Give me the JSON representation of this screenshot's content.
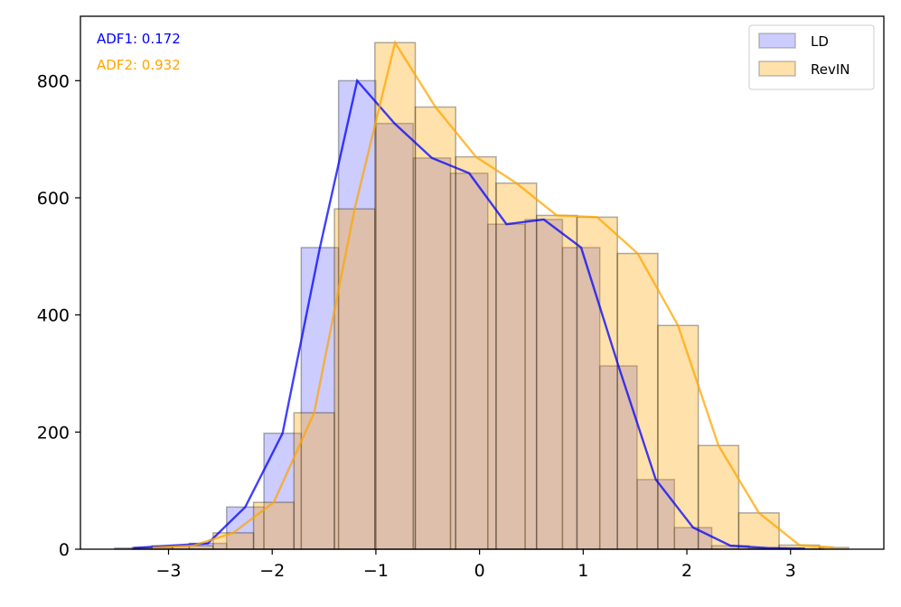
{
  "chart_data": {
    "type": "bar",
    "title": "",
    "xlabel": "",
    "ylabel": "",
    "xlim": [
      -3.85,
      3.9
    ],
    "ylim": [
      0,
      910
    ],
    "x_ticks": [
      -3,
      -2,
      -1,
      0,
      1,
      2,
      3
    ],
    "x_tick_labels": [
      "−3",
      "−2",
      "−1",
      "0",
      "1",
      "2",
      "3"
    ],
    "y_ticks": [
      0,
      200,
      400,
      600,
      800
    ],
    "y_tick_labels": [
      "0",
      "200",
      "400",
      "600",
      "800"
    ],
    "grid": false,
    "legend_position": "top-right",
    "annotations": [
      {
        "text": "ADF1: 0.172",
        "color": "#0000ff"
      },
      {
        "text": "ADF2: 0.932",
        "color": "#ffa500"
      }
    ],
    "series": [
      {
        "name": "LD",
        "fill_color": "#0000ff",
        "fill_opacity": 0.2,
        "line_color": "#0000ff",
        "bin_edges": [
          -3.52,
          -3.16,
          -2.8,
          -2.44,
          -2.08,
          -1.72,
          -1.36,
          -1.0,
          -0.64,
          -0.28,
          0.08,
          0.44,
          0.8,
          1.16,
          1.52,
          1.88,
          2.24,
          2.6,
          2.96,
          3.32
        ],
        "counts": [
          2,
          6,
          10,
          72,
          198,
          515,
          800,
          727,
          668,
          642,
          555,
          563,
          515,
          313,
          119,
          37,
          6,
          2,
          1
        ]
      },
      {
        "name": "RevIN",
        "fill_color": "#ffa500",
        "fill_opacity": 0.33,
        "line_color": "#ffa500",
        "bin_edges": [
          -3.35,
          -2.96,
          -2.57,
          -2.18,
          -1.79,
          -1.4,
          -1.01,
          -0.62,
          -0.23,
          0.16,
          0.55,
          0.94,
          1.33,
          1.72,
          2.11,
          2.5,
          2.89,
          3.28,
          3.56
        ],
        "counts": [
          3,
          6,
          28,
          80,
          233,
          581,
          865,
          755,
          670,
          625,
          570,
          567,
          505,
          382,
          177,
          62,
          7,
          3
        ]
      }
    ]
  }
}
